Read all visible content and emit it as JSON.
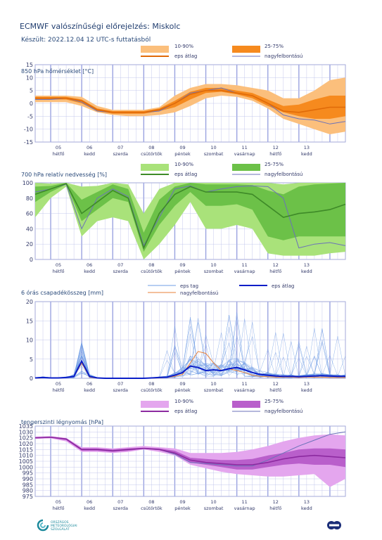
{
  "header": {
    "title": "ECMWF valószínűségi előrejelzés: Miskolc",
    "subtitle": "Készült: 2022.12.04 12 UTC-s futtatásból"
  },
  "days": [
    {
      "date": "05",
      "name": "hétfő"
    },
    {
      "date": "06",
      "name": "kedd"
    },
    {
      "date": "07",
      "name": "szerda"
    },
    {
      "date": "08",
      "name": "csütörtök"
    },
    {
      "date": "09",
      "name": "péntek"
    },
    {
      "date": "10",
      "name": "szombat"
    },
    {
      "date": "11",
      "name": "vasárnap"
    },
    {
      "date": "12",
      "name": "hétfő"
    },
    {
      "date": "13",
      "name": "kedd"
    }
  ],
  "colors": {
    "temp_outer": "#fbbf7c",
    "temp_inner": "#f68a1e",
    "temp_mean": "#e06a08",
    "rh_outer": "#a9e27a",
    "rh_inner": "#6cc148",
    "rh_mean": "#3e8a28",
    "precip_member": "#6f9ce4",
    "precip_mean": "#0a1ec8",
    "precip_hires": "#e8823a",
    "press_outer": "#e4a6ee",
    "press_inner": "#b95fcb",
    "press_mean": "#8c2aa0",
    "hires": "#6b72b8",
    "grid": "#b7bde8",
    "day_line": "#9aa3e0"
  },
  "chart_data": [
    {
      "type": "area",
      "title": "850 hPa hőmérséklet [°C]",
      "ylim": [
        -15,
        15
      ],
      "yticks": [
        -15,
        -10,
        -5,
        0,
        5,
        10,
        15
      ],
      "legend": {
        "outer": "10-90%",
        "inner": "25-75%",
        "mean": "eps átlag",
        "hires": "nagyfelbontású"
      },
      "x": [
        0,
        0.5,
        1,
        1.5,
        2,
        2.5,
        3,
        3.5,
        4,
        4.5,
        5,
        5.5,
        6,
        6.5,
        7,
        7.5,
        8,
        8.5,
        9,
        9.5,
        10
      ],
      "p10": [
        0.5,
        0.5,
        0.5,
        -1,
        -3.5,
        -4.5,
        -5,
        -5,
        -4.5,
        -3.5,
        -1,
        2,
        3,
        2.5,
        1,
        -2,
        -6,
        -8,
        -10,
        -12,
        -11
      ],
      "p25": [
        1.5,
        1.5,
        1.5,
        0,
        -3,
        -4,
        -4,
        -4,
        -3,
        -1.5,
        1.5,
        4,
        4.5,
        3.5,
        2,
        -1,
        -3.5,
        -5,
        -6,
        -6,
        -5
      ],
      "mean": [
        2,
        2,
        2,
        1,
        -2.5,
        -3.5,
        -3.5,
        -3.5,
        -2.5,
        0,
        3.5,
        5,
        5,
        4,
        3,
        0,
        -3,
        -3.5,
        -2.5,
        -1.5,
        -1.5
      ],
      "p75": [
        2.5,
        2.5,
        2.5,
        1.5,
        -2,
        -3,
        -3,
        -3,
        -2,
        1,
        4.5,
        6,
        6,
        5,
        4,
        1.5,
        -1,
        -0.5,
        1.5,
        3,
        3
      ],
      "p90": [
        3,
        3,
        3,
        2.5,
        -1,
        -2.5,
        -2.5,
        -2.5,
        -1.5,
        3,
        6,
        7.5,
        7.5,
        7,
        6,
        5,
        2,
        2,
        5,
        9,
        10
      ],
      "hires": [
        1.5,
        1.5,
        2,
        0.5,
        -3,
        -3.5,
        -3.5,
        -3.5,
        -3,
        0,
        4,
        5,
        6,
        4,
        3,
        0,
        -4.5,
        -6,
        -6.5,
        -8,
        -7
      ]
    },
    {
      "type": "area",
      "title": "700 hPa relatív nedvesség [%]",
      "ylim": [
        0,
        100
      ],
      "yticks": [
        0,
        20,
        40,
        60,
        80,
        100
      ],
      "legend": {
        "outer": "10-90%",
        "inner": "25-75%",
        "mean": "eps átlag",
        "hires": "nagyfelbontású"
      },
      "x": [
        0,
        0.5,
        1,
        1.5,
        2,
        2.5,
        3,
        3.5,
        4,
        4.5,
        5,
        5.5,
        6,
        6.5,
        7,
        7.5,
        8,
        8.5,
        9,
        9.5,
        10
      ],
      "p10": [
        55,
        80,
        95,
        30,
        50,
        55,
        50,
        0,
        20,
        45,
        75,
        40,
        40,
        45,
        40,
        8,
        5,
        5,
        5,
        8,
        10
      ],
      "p25": [
        75,
        88,
        98,
        50,
        65,
        80,
        75,
        10,
        45,
        70,
        88,
        70,
        70,
        72,
        65,
        30,
        25,
        30,
        30,
        30,
        30
      ],
      "mean": [
        85,
        92,
        99,
        60,
        75,
        90,
        80,
        15,
        60,
        85,
        95,
        88,
        88,
        88,
        85,
        70,
        55,
        60,
        62,
        65,
        72
      ],
      "p75": [
        95,
        96,
        100,
        78,
        88,
        98,
        92,
        35,
        78,
        95,
        100,
        98,
        98,
        98,
        97,
        90,
        85,
        95,
        98,
        99,
        100
      ],
      "p90": [
        100,
        99,
        100,
        95,
        96,
        100,
        98,
        60,
        92,
        100,
        100,
        100,
        100,
        100,
        100,
        100,
        98,
        100,
        100,
        100,
        100
      ],
      "hires": [
        88,
        92,
        98,
        40,
        80,
        92,
        82,
        18,
        55,
        92,
        96,
        88,
        92,
        95,
        96,
        95,
        80,
        15,
        20,
        22,
        18
      ]
    },
    {
      "type": "line",
      "title": "6 órás csapadékösszeg [mm]",
      "ylim": [
        0,
        20
      ],
      "yticks": [
        0,
        5,
        10,
        15,
        20
      ],
      "legend": {
        "member": "eps tag",
        "mean": "eps átlag",
        "hires": "nagyfelbontású"
      },
      "x": [
        0,
        0.25,
        0.5,
        0.75,
        1,
        1.25,
        1.5,
        1.75,
        2,
        2.25,
        2.5,
        2.75,
        3,
        3.25,
        3.5,
        3.75,
        4,
        4.25,
        4.5,
        4.75,
        5,
        5.25,
        5.5,
        5.75,
        6,
        6.25,
        6.5,
        6.75,
        7,
        7.25,
        7.5,
        7.75,
        8,
        8.25,
        8.5,
        8.75,
        9,
        9.25,
        9.5,
        9.75,
        10
      ],
      "mean": [
        0.1,
        0.2,
        0.1,
        0.1,
        0.2,
        0.5,
        4.5,
        0.5,
        0.1,
        0,
        0,
        0,
        0,
        0,
        0,
        0.1,
        0.2,
        0.3,
        0.8,
        1.5,
        3.2,
        2.8,
        2,
        2.2,
        2,
        2.5,
        2.8,
        2.2,
        1.5,
        1,
        0.8,
        0.6,
        0.5,
        0.5,
        0.4,
        0.5,
        0.6,
        0.7,
        0.6,
        0.5,
        0.5
      ],
      "hires": [
        0,
        0.1,
        0.1,
        0.1,
        0.2,
        0.4,
        4,
        0.3,
        0,
        0,
        0,
        0,
        0,
        0,
        0,
        0,
        0.1,
        0.2,
        0.5,
        1,
        4,
        7,
        6.5,
        4,
        2,
        2.5,
        2,
        1.5,
        0.8,
        0.5,
        0.4,
        0.3,
        0.3,
        0.3,
        0.2,
        0.3,
        0.3,
        0.3,
        0.2,
        0.2,
        0.2
      ]
    },
    {
      "type": "area",
      "title": "tengerszinti légnyomás [hPa]",
      "ylim": [
        975,
        1035
      ],
      "yticks": [
        975,
        980,
        985,
        990,
        995,
        1000,
        1005,
        1010,
        1015,
        1020,
        1025,
        1030,
        1035
      ],
      "legend": {
        "outer": "10-90%",
        "inner": "25-75%",
        "mean": "eps átlag",
        "hires": "nagyfelbontású"
      },
      "x": [
        0,
        0.5,
        1,
        1.5,
        2,
        2.5,
        3,
        3.5,
        4,
        4.5,
        5,
        5.5,
        6,
        6.5,
        7,
        7.5,
        8,
        8.5,
        9,
        9.5,
        10
      ],
      "p10": [
        1024,
        1024.5,
        1022,
        1013,
        1013,
        1012,
        1013,
        1015,
        1013,
        1010,
        1002,
        999,
        996,
        994,
        993,
        992,
        992,
        993,
        994,
        983,
        990
      ],
      "p25": [
        1024.5,
        1025,
        1023,
        1014,
        1014,
        1013,
        1014,
        1015.5,
        1014.5,
        1011,
        1004,
        1002,
        1000,
        998,
        998,
        1000,
        1002,
        1003,
        1002,
        1002,
        1000
      ],
      "mean": [
        1025,
        1025.5,
        1024,
        1015,
        1015,
        1014,
        1015,
        1016,
        1015,
        1012,
        1006,
        1004,
        1003,
        1002,
        1002,
        1004,
        1007,
        1009,
        1010,
        1009,
        1008
      ],
      "p75": [
        1025.5,
        1026,
        1024.5,
        1016,
        1016,
        1015,
        1016,
        1016.5,
        1016,
        1014,
        1008,
        1007,
        1006,
        1006,
        1007,
        1010,
        1012,
        1015,
        1016,
        1016,
        1015
      ],
      "p90": [
        1026,
        1026.5,
        1025,
        1017,
        1017,
        1016,
        1017,
        1018,
        1017,
        1016,
        1012,
        1012,
        1012,
        1013,
        1015,
        1018,
        1022,
        1025,
        1027,
        1028,
        1027
      ],
      "hires": [
        1025,
        1025.5,
        1024,
        1015,
        1015,
        1014,
        1015,
        1016,
        1015,
        1011,
        1004,
        1003,
        1002,
        1001,
        1001,
        1006,
        1012,
        1018,
        1023,
        1028,
        1030
      ]
    }
  ],
  "logos": {
    "left": "ORSZÁGOS METEOROLÓGIAI SZOLGÁLAT"
  }
}
